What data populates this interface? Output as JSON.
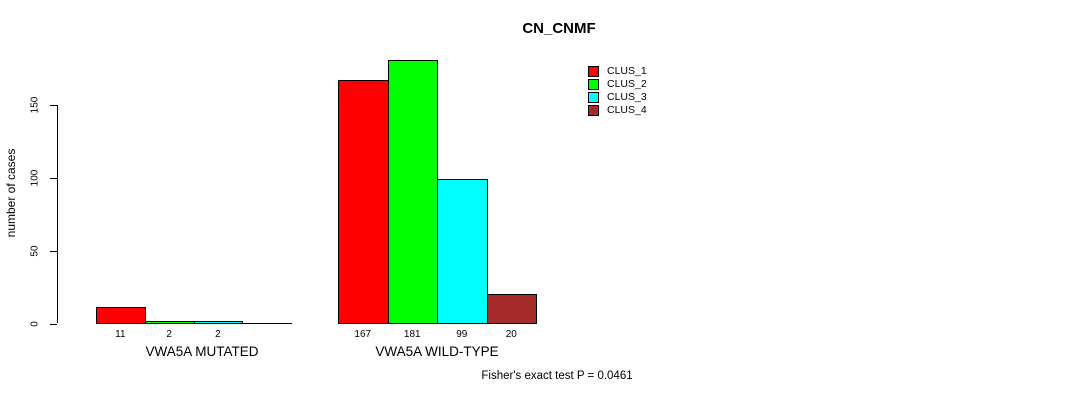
{
  "chart_data": {
    "type": "bar",
    "grouped": true,
    "title": "CN_CNMF",
    "ylabel": "number of cases",
    "xlabel": "",
    "categories": [
      "VWA5A MUTATED",
      "VWA5A WILD-TYPE"
    ],
    "series": [
      {
        "name": "CLUS_1",
        "color": "#FF0000",
        "values": [
          11,
          167
        ]
      },
      {
        "name": "CLUS_2",
        "color": "#00FF00",
        "values": [
          2,
          181
        ]
      },
      {
        "name": "CLUS_3",
        "color": "#00FFFF",
        "values": [
          2,
          99
        ]
      },
      {
        "name": "CLUS_4",
        "color": "#A52A2A",
        "values": [
          0,
          20
        ]
      }
    ],
    "bar_labels": [
      [
        "11",
        "2",
        "2",
        ""
      ],
      [
        "167",
        "181",
        "99",
        "20"
      ]
    ],
    "yticks": [
      0,
      50,
      100,
      150
    ],
    "ylim": [
      0,
      188
    ],
    "grid": false,
    "legend_position": "top-right",
    "annotation": "Fisher's exact test P = 0.0461",
    "axis_color": "#000000"
  }
}
